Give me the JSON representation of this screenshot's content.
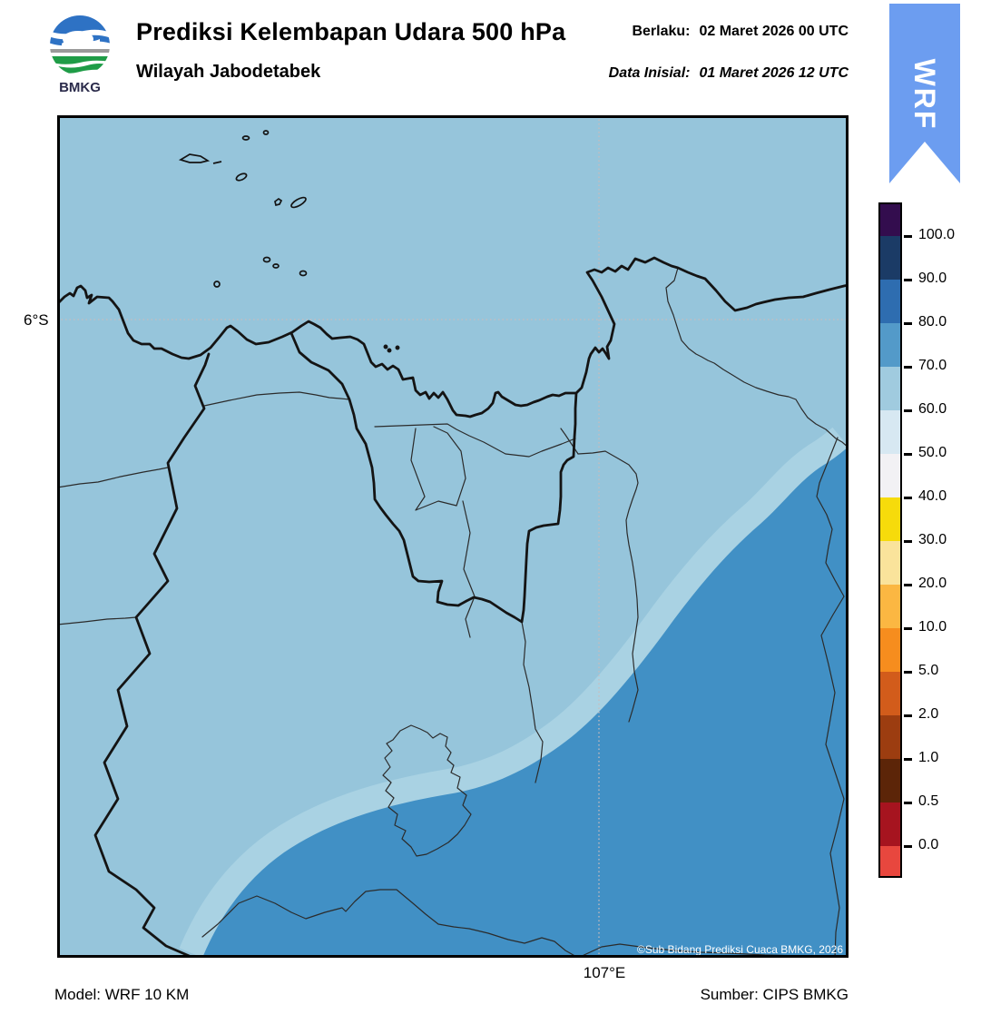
{
  "header": {
    "title": "Prediksi Kelembapan Udara 500 hPa",
    "subtitle": "Wilayah Jabodetabek",
    "valid_label": "Berlaku:",
    "valid_value": "02 Maret 2026 00 UTC",
    "init_label": "Data Inisial:",
    "init_value": "01 Maret 2026 12 UTC",
    "logo_text": "BMKG"
  },
  "ribbon": {
    "label": "WRF",
    "color": "#6C9DF0"
  },
  "map": {
    "lat_label": "6°S",
    "lon_label": "107°E",
    "copyright": "©Sub Bidang Prediksi Cuaca BMKG, 2026",
    "colors": {
      "base": "#96C5DB",
      "band": "#A9D2E3",
      "dark": "#4190C5",
      "grid": "#C9BCBC"
    }
  },
  "colorbar": {
    "ticks": [
      "100.0",
      "90.0",
      "80.0",
      "70.0",
      "60.0",
      "50.0",
      "40.0",
      "30.0",
      "20.0",
      "10.0",
      "5.0",
      "2.0",
      "1.0",
      "0.5",
      "0.0"
    ],
    "colors": [
      "#330D4E",
      "#1B3B66",
      "#2E6DB0",
      "#539AC9",
      "#A0CBDF",
      "#D7E8F2",
      "#F2F1F4",
      "#F6DB0B",
      "#FAE39B",
      "#FBB742",
      "#F68D1E",
      "#D25C1B",
      "#9C3D10",
      "#5C2508",
      "#A6141F",
      "#E8473E"
    ]
  },
  "footer": {
    "model": "Model: WRF 10 KM",
    "source": "Sumber: CIPS BMKG"
  }
}
